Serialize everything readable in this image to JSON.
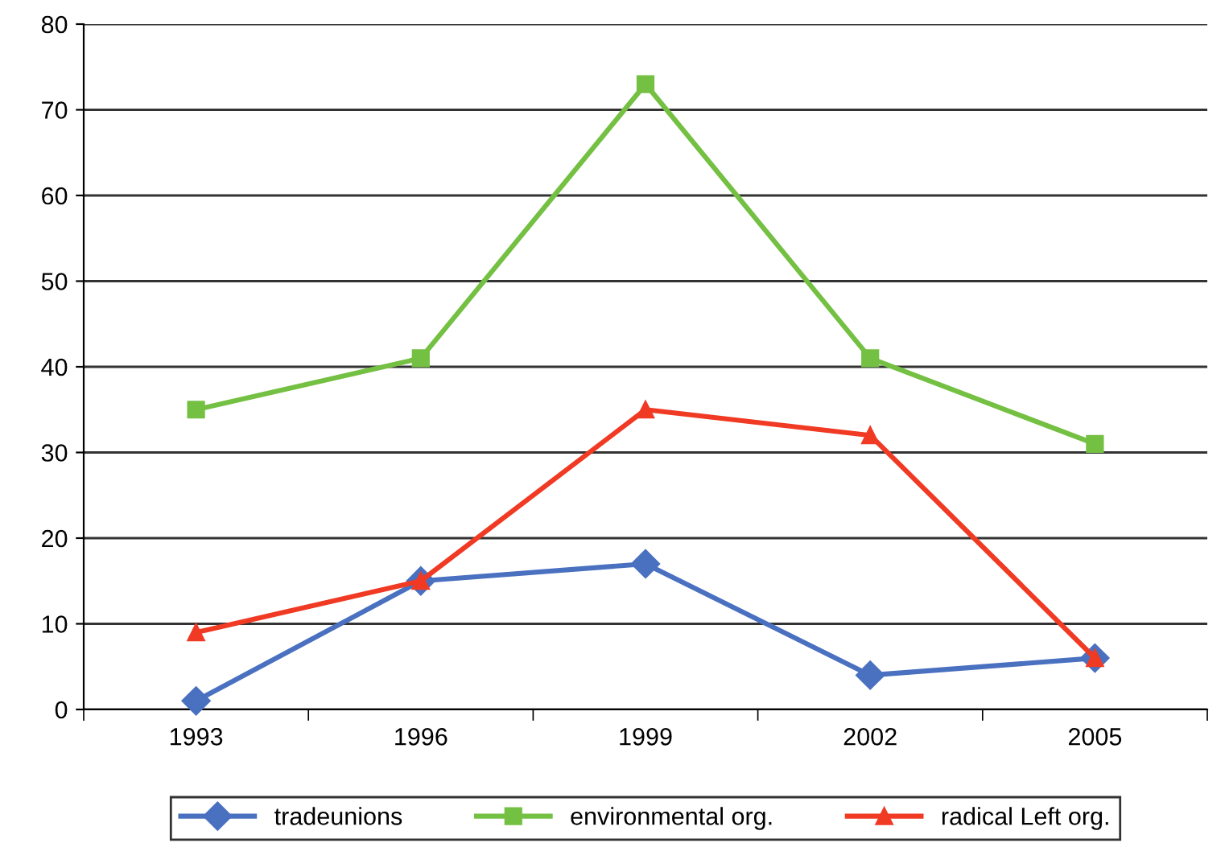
{
  "chart_data": {
    "type": "line",
    "categories": [
      "1993",
      "1996",
      "1999",
      "2002",
      "2005"
    ],
    "series": [
      {
        "name": "tradeunions",
        "color": "#4a70c0",
        "marker": "diamond",
        "values": [
          1,
          15,
          17,
          4,
          6
        ]
      },
      {
        "name": "environmental org.",
        "color": "#74c043",
        "marker": "square",
        "values": [
          35,
          41,
          73,
          41,
          31
        ]
      },
      {
        "name": "radical Left org.",
        "color": "#f03a24",
        "marker": "triangle",
        "values": [
          9,
          15,
          35,
          32,
          6
        ]
      }
    ],
    "ylim": [
      0,
      80
    ],
    "yticks": [
      0,
      10,
      20,
      30,
      40,
      50,
      60,
      70,
      80
    ],
    "grid": "y",
    "legend": "bottom",
    "line_style": "solid"
  }
}
